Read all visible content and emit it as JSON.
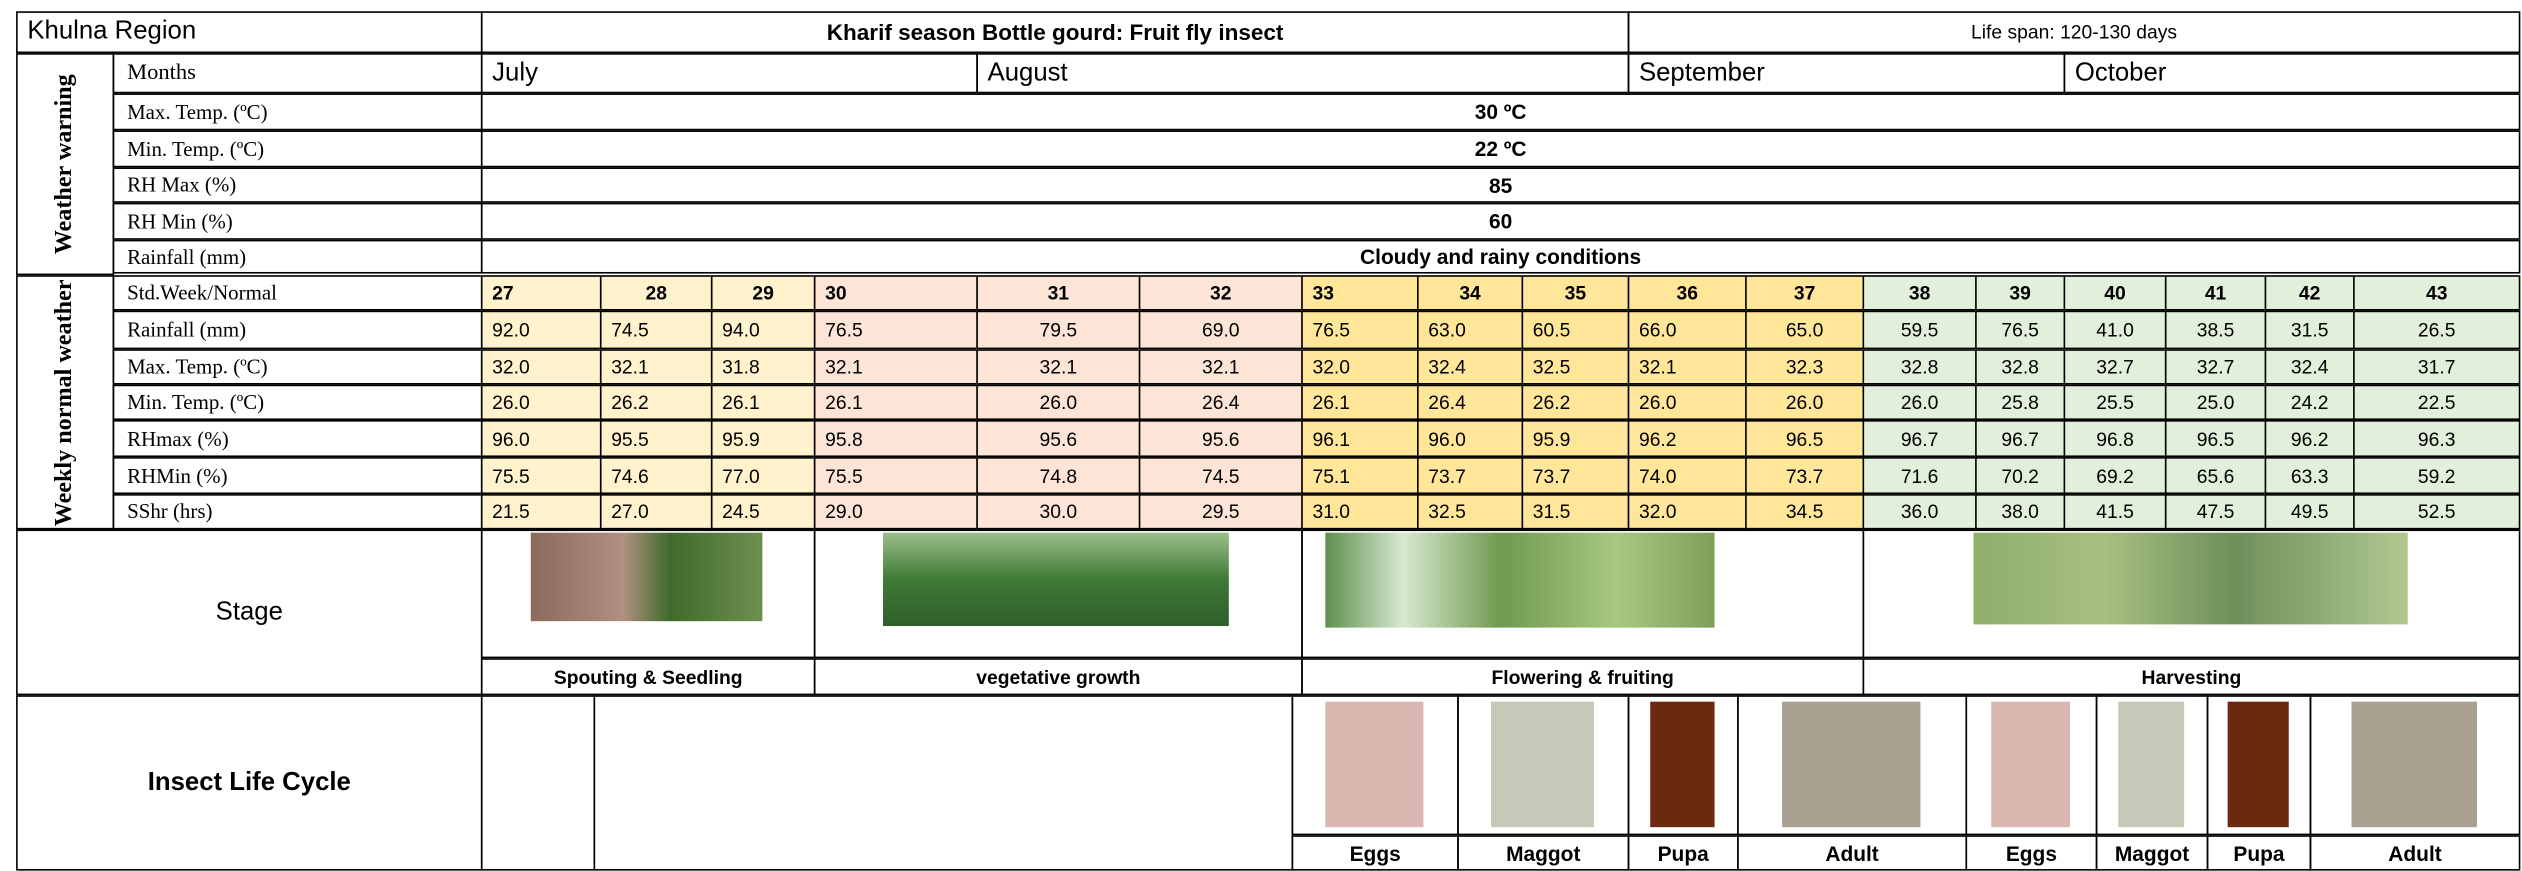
{
  "header": {
    "region": "Khulna Region",
    "title": "Kharif season Bottle gourd: Fruit fly insect",
    "life_span": "Life span: 120-130 days"
  },
  "weather_warning": {
    "label": "Weather warning",
    "months_label": "Months",
    "months": [
      "July",
      "August",
      "September",
      "October"
    ],
    "rows": [
      {
        "label": "Max. Temp. (ºC)",
        "value": "30 ºC"
      },
      {
        "label": "Min. Temp. (ºC)",
        "value": "22 ºC"
      },
      {
        "label": "RH Max (%)",
        "value": "85"
      },
      {
        "label": "RH Min (%)",
        "value": "60"
      },
      {
        "label": "Rainfall (mm)",
        "value": "Cloudy and rainy conditions"
      }
    ]
  },
  "weekly_normal": {
    "label": "Weekly normal weather",
    "week_label": "Std.Week/Normal",
    "weeks": [
      "27",
      "28",
      "29",
      "30",
      "31",
      "32",
      "33",
      "34",
      "35",
      "36",
      "37",
      "38",
      "39",
      "40",
      "41",
      "42",
      "43"
    ],
    "rows": [
      {
        "label": "Rainfall (mm)",
        "values": [
          "92.0",
          "74.5",
          "94.0",
          "76.5",
          "79.5",
          "69.0",
          "76.5",
          "63.0",
          "60.5",
          "66.0",
          "65.0",
          "59.5",
          "76.5",
          "41.0",
          "38.5",
          "31.5",
          "26.5"
        ]
      },
      {
        "label": "Max. Temp. (ºC)",
        "values": [
          "32.0",
          "32.1",
          "31.8",
          "32.1",
          "32.1",
          "32.1",
          "32.0",
          "32.4",
          "32.5",
          "32.1",
          "32.3",
          "32.8",
          "32.8",
          "32.7",
          "32.7",
          "32.4",
          "31.7"
        ]
      },
      {
        "label": "Min. Temp. (ºC)",
        "values": [
          "26.0",
          "26.2",
          "26.1",
          "26.1",
          "26.0",
          "26.4",
          "26.1",
          "26.4",
          "26.2",
          "26.0",
          "26.0",
          "26.0",
          "25.8",
          "25.5",
          "25.0",
          "24.2",
          "22.5"
        ]
      },
      {
        "label": "RHmax (%)",
        "values": [
          "96.0",
          "95.5",
          "95.9",
          "95.8",
          "95.6",
          "95.6",
          "96.1",
          "96.0",
          "95.9",
          "96.2",
          "96.5",
          "96.7",
          "96.7",
          "96.8",
          "96.5",
          "96.2",
          "96.3"
        ]
      },
      {
        "label": "RHMin (%)",
        "values": [
          "75.5",
          "74.6",
          "77.0",
          "75.5",
          "74.8",
          "74.5",
          "75.1",
          "73.7",
          "73.7",
          "74.0",
          "73.7",
          "71.6",
          "70.2",
          "69.2",
          "65.6",
          "63.3",
          "59.2"
        ]
      },
      {
        "label": "SShr (hrs)",
        "values": [
          "21.5",
          "27.0",
          "24.5",
          "29.0",
          "30.0",
          "29.5",
          "31.0",
          "32.5",
          "31.5",
          "32.0",
          "34.5",
          "36.0",
          "38.0",
          "41.5",
          "47.5",
          "49.5",
          "52.5"
        ]
      }
    ]
  },
  "stage": {
    "label": "Stage",
    "stages": [
      "Spouting & Seedling",
      "vegetative growth",
      "Flowering & fruiting",
      "Harvesting"
    ]
  },
  "insect": {
    "label": "Insect Life Cycle",
    "stages": [
      "Eggs",
      "Maggot",
      "Pupa",
      "Adult",
      "Eggs",
      "Maggot",
      "Pupa",
      "Adult"
    ]
  }
}
